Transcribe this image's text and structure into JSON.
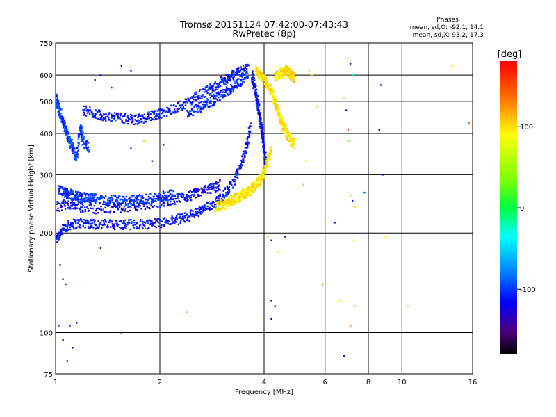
{
  "chart_data": {
    "type": "scatter",
    "title_line1": "Tromsø 20151124 07:42:00-07:43:43",
    "title_line2": "RwPretec (8p)",
    "xlabel": "Frequency [MHz]",
    "ylabel": "Stationary phase Virtual Height [km]",
    "x_scale": "log",
    "y_scale": "log",
    "xlim": [
      1,
      16
    ],
    "ylim": [
      75,
      750
    ],
    "x_ticks": [
      1,
      2,
      4,
      6,
      8,
      10,
      16
    ],
    "x_tick_labels": [
      "1",
      "2",
      "4",
      "6",
      "8",
      "10",
      "16"
    ],
    "y_ticks": [
      75,
      100,
      200,
      300,
      400,
      500,
      600,
      750
    ],
    "y_tick_labels": [
      "75",
      "100",
      "200",
      "300",
      "400",
      "500",
      "600",
      "750"
    ],
    "grid": true,
    "stats": {
      "heading": "Phases",
      "line_o": "mean, sd,O: -92.1, 14.1",
      "line_x": "mean, sd,X:  93.2, 17.3"
    },
    "colorbar": {
      "label": "[deg]",
      "range": [
        -180,
        180
      ],
      "ticks": [
        100,
        0,
        -100
      ],
      "tick_labels": [
        "100",
        "0",
        "-100"
      ]
    },
    "series": [
      {
        "trace": "o-lower",
        "x": [
          1.0,
          1.05,
          1.1,
          1.2,
          1.3,
          1.45,
          1.6,
          1.8,
          2.0,
          2.2,
          2.4,
          2.6,
          2.8,
          3.0,
          3.2,
          3.4,
          3.55,
          3.65
        ],
        "y": [
          190,
          205,
          212,
          215,
          213,
          212,
          212,
          213,
          215,
          218,
          224,
          232,
          242,
          255,
          275,
          310,
          360,
          420
        ],
        "phase": -105
      },
      {
        "trace": "o-lower-echo",
        "x": [
          1.0,
          1.1,
          1.2,
          1.4,
          1.6,
          1.8,
          2.0,
          2.2,
          2.4,
          2.6,
          2.8,
          3.0
        ],
        "y": [
          240,
          245,
          238,
          236,
          240,
          244,
          248,
          252,
          258,
          265,
          272,
          280
        ],
        "phase": -110
      },
      {
        "trace": "o-diffuse-low",
        "x": [
          1.02,
          1.06,
          1.1,
          1.15,
          1.2,
          1.25,
          1.3,
          1.4,
          1.5,
          1.6,
          1.75,
          1.9,
          2.05,
          2.2
        ],
        "y": [
          270,
          265,
          262,
          258,
          256,
          255,
          254,
          252,
          250,
          250,
          252,
          255,
          258,
          262
        ],
        "phase": -95
      },
      {
        "trace": "o-upper",
        "x": [
          1.2,
          1.3,
          1.4,
          1.55,
          1.7,
          1.85,
          2.0,
          2.2,
          2.4,
          2.6,
          2.8,
          3.0,
          3.2,
          3.4,
          3.6
        ],
        "y": [
          470,
          460,
          450,
          445,
          440,
          448,
          460,
          475,
          495,
          520,
          545,
          570,
          595,
          615,
          630
        ],
        "phase": -105
      },
      {
        "trace": "o-upper-echo",
        "x": [
          2.4,
          2.6,
          2.8,
          3.0,
          3.2,
          3.4,
          3.6
        ],
        "y": [
          460,
          478,
          498,
          520,
          545,
          570,
          600
        ],
        "phase": -100
      },
      {
        "trace": "o-diffuse-1mhz",
        "x": [
          1.0,
          1.02,
          1.04,
          1.06,
          1.08,
          1.1,
          1.12,
          1.15,
          1.18,
          1.2,
          1.25
        ],
        "y": [
          520,
          480,
          450,
          420,
          400,
          380,
          360,
          340,
          420,
          380,
          360
        ],
        "phase": -90
      },
      {
        "trace": "o-vertical",
        "x": [
          3.7,
          3.75,
          3.8,
          3.85,
          3.9,
          3.95,
          4.0,
          4.05
        ],
        "y": [
          600,
          560,
          520,
          480,
          440,
          400,
          360,
          320
        ],
        "phase": -108
      },
      {
        "trace": "x-lower",
        "x": [
          2.9,
          3.0,
          3.1,
          3.2,
          3.3,
          3.4,
          3.5,
          3.6,
          3.7,
          3.8,
          3.9,
          4.0,
          4.1,
          4.2
        ],
        "y": [
          240,
          242,
          246,
          250,
          254,
          258,
          262,
          266,
          272,
          280,
          290,
          305,
          330,
          360
        ],
        "phase": 95
      },
      {
        "trace": "x-upper",
        "x": [
          3.8,
          3.9,
          4.0,
          4.1,
          4.2,
          4.3,
          4.4,
          4.5,
          4.6,
          4.7,
          4.8,
          4.9
        ],
        "y": [
          620,
          600,
          580,
          560,
          540,
          500,
          460,
          430,
          410,
          395,
          380,
          370
        ],
        "phase": 98
      },
      {
        "trace": "x-high-band",
        "x": [
          4.3,
          4.4,
          4.5,
          4.6,
          4.7,
          4.8,
          4.9
        ],
        "y": [
          590,
          600,
          610,
          620,
          615,
          600,
          590
        ],
        "phase": 100
      }
    ],
    "scattered_points": [
      {
        "x": 1.35,
        "y": 600,
        "phase": -105
      },
      {
        "x": 1.55,
        "y": 640,
        "phase": -100
      },
      {
        "x": 1.65,
        "y": 620,
        "phase": -110
      },
      {
        "x": 1.3,
        "y": 580,
        "phase": -95
      },
      {
        "x": 1.45,
        "y": 550,
        "phase": -100
      },
      {
        "x": 1.65,
        "y": 360,
        "phase": -105
      },
      {
        "x": 1.8,
        "y": 380,
        "phase": 110
      },
      {
        "x": 1.9,
        "y": 330,
        "phase": -100
      },
      {
        "x": 2.05,
        "y": 370,
        "phase": -115
      },
      {
        "x": 1.03,
        "y": 160,
        "phase": -110
      },
      {
        "x": 1.05,
        "y": 145,
        "phase": -105
      },
      {
        "x": 1.07,
        "y": 140,
        "phase": -95
      },
      {
        "x": 1.02,
        "y": 105,
        "phase": -110
      },
      {
        "x": 1.1,
        "y": 105,
        "phase": -100
      },
      {
        "x": 1.15,
        "y": 107,
        "phase": -120
      },
      {
        "x": 1.05,
        "y": 95,
        "phase": -100
      },
      {
        "x": 1.12,
        "y": 90,
        "phase": -110
      },
      {
        "x": 1.08,
        "y": 82,
        "phase": -100
      },
      {
        "x": 1.55,
        "y": 100,
        "phase": -120
      },
      {
        "x": 1.35,
        "y": 180,
        "phase": -105
      },
      {
        "x": 2.4,
        "y": 115,
        "phase": 20
      },
      {
        "x": 4.1,
        "y": 195,
        "phase": 105
      },
      {
        "x": 4.2,
        "y": 190,
        "phase": -110
      },
      {
        "x": 4.4,
        "y": 175,
        "phase": 100
      },
      {
        "x": 4.6,
        "y": 195,
        "phase": -100
      },
      {
        "x": 4.2,
        "y": 125,
        "phase": -110
      },
      {
        "x": 4.3,
        "y": 120,
        "phase": -105
      },
      {
        "x": 4.2,
        "y": 110,
        "phase": -115
      },
      {
        "x": 5.2,
        "y": 280,
        "phase": 110
      },
      {
        "x": 5.3,
        "y": 330,
        "phase": 95
      },
      {
        "x": 5.4,
        "y": 620,
        "phase": 110
      },
      {
        "x": 5.5,
        "y": 600,
        "phase": 105
      },
      {
        "x": 5.7,
        "y": 480,
        "phase": 100
      },
      {
        "x": 5.9,
        "y": 140,
        "phase": 140
      },
      {
        "x": 6.0,
        "y": 75,
        "phase": -100
      },
      {
        "x": 6.4,
        "y": 215,
        "phase": -110
      },
      {
        "x": 6.6,
        "y": 125,
        "phase": 90
      },
      {
        "x": 6.8,
        "y": 510,
        "phase": 115
      },
      {
        "x": 6.9,
        "y": 470,
        "phase": -110
      },
      {
        "x": 7.0,
        "y": 410,
        "phase": 150
      },
      {
        "x": 7.0,
        "y": 380,
        "phase": 20
      },
      {
        "x": 7.1,
        "y": 260,
        "phase": 120
      },
      {
        "x": 7.2,
        "y": 250,
        "phase": -100
      },
      {
        "x": 7.3,
        "y": 240,
        "phase": 110
      },
      {
        "x": 7.2,
        "y": 600,
        "phase": -20
      },
      {
        "x": 7.1,
        "y": 650,
        "phase": -110
      },
      {
        "x": 7.2,
        "y": 190,
        "phase": 100
      },
      {
        "x": 7.1,
        "y": 105,
        "phase": 140
      },
      {
        "x": 7.3,
        "y": 120,
        "phase": 30
      },
      {
        "x": 6.8,
        "y": 85,
        "phase": -105
      },
      {
        "x": 7.8,
        "y": 265,
        "phase": -80
      },
      {
        "x": 8.7,
        "y": 560,
        "phase": -90
      },
      {
        "x": 8.6,
        "y": 410,
        "phase": -110
      },
      {
        "x": 8.8,
        "y": 300,
        "phase": -110
      },
      {
        "x": 8.9,
        "y": 195,
        "phase": 95
      },
      {
        "x": 10.4,
        "y": 120,
        "phase": 40
      },
      {
        "x": 14.0,
        "y": 640,
        "phase": 100
      },
      {
        "x": 15.6,
        "y": 430,
        "phase": 150
      }
    ]
  }
}
